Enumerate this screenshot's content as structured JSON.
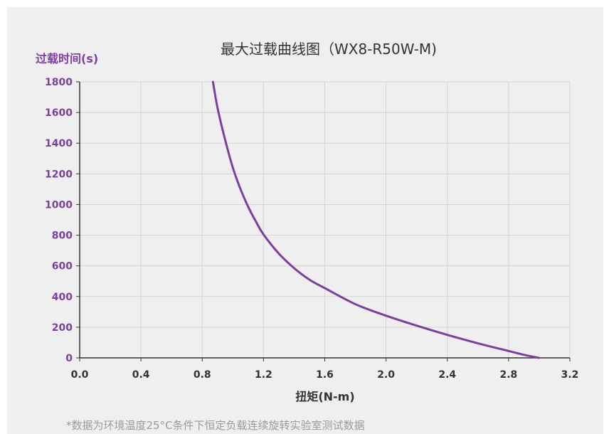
{
  "chart_data": {
    "type": "line",
    "title": "最大过载曲线图（WX8-R50W-M)",
    "ylabel": "过载时间(s)",
    "xlabel": "扭矩(N-m)",
    "xlim": [
      0,
      3.2
    ],
    "ylim": [
      0,
      1800
    ],
    "xticks": [
      "0.0",
      "0.4",
      "0.8",
      "1.2",
      "1.6",
      "2.0",
      "2.4",
      "2.8",
      "3.2"
    ],
    "yticks": [
      "1800",
      "1600",
      "1400",
      "1200",
      "1000",
      "800",
      "600",
      "400",
      "200",
      "0"
    ],
    "grid": true,
    "series": [
      {
        "x": [
          0.87,
          0.9,
          0.95,
          1.0,
          1.05,
          1.1,
          1.15,
          1.2,
          1.3,
          1.4,
          1.5,
          1.6,
          1.8,
          2.0,
          2.2,
          2.4,
          2.6,
          2.8,
          2.9,
          3.0
        ],
        "y": [
          1800,
          1630,
          1420,
          1240,
          1100,
          985,
          890,
          805,
          680,
          585,
          510,
          455,
          350,
          275,
          210,
          150,
          95,
          45,
          20,
          0
        ],
        "color": "#7b3fa0"
      }
    ]
  },
  "colors": {
    "axis_label": "#7b3fa0",
    "tick_label": "#7b3fa0",
    "grid": "#d5d5d5",
    "axis": "#333333",
    "curve": "#7b3fa0"
  },
  "footnote": "*数据为环境温度25°C条件下恒定负载连续旋转实验室测试数据"
}
